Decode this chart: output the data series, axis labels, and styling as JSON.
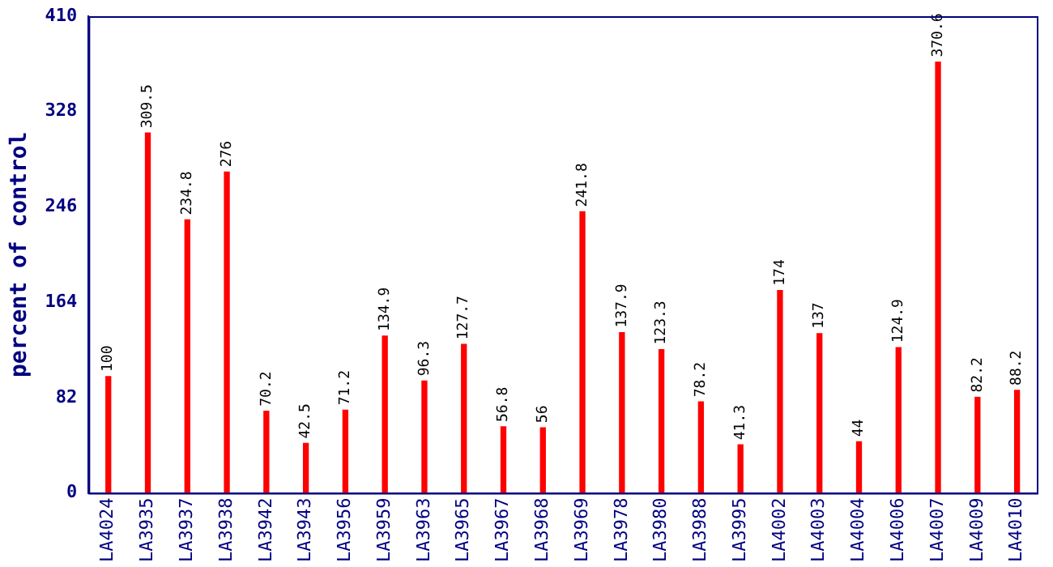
{
  "chart_data": {
    "type": "bar",
    "ylabel": "percent of control",
    "categories": [
      "LA4024",
      "LA3935",
      "LA3937",
      "LA3938",
      "LA3942",
      "LA3943",
      "LA3956",
      "LA3959",
      "LA3963",
      "LA3965",
      "LA3967",
      "LA3968",
      "LA3969",
      "LA3978",
      "LA3980",
      "LA3988",
      "LA3995",
      "LA4002",
      "LA4003",
      "LA4004",
      "LA4006",
      "LA4007",
      "LA4009",
      "LA4010"
    ],
    "values": [
      100,
      309.5,
      234.8,
      276,
      70.2,
      42.5,
      71.2,
      134.9,
      96.3,
      127.7,
      56.8,
      56,
      241.8,
      137.9,
      123.3,
      78.2,
      41.3,
      174,
      137,
      44,
      124.9,
      370.6,
      82.2,
      88.2
    ],
    "color": "#ff0000",
    "ylim": [
      0,
      410
    ],
    "yticks": [
      0,
      82,
      164,
      246,
      328,
      410
    ],
    "grid": false,
    "legend": false,
    "data_labels": true
  }
}
